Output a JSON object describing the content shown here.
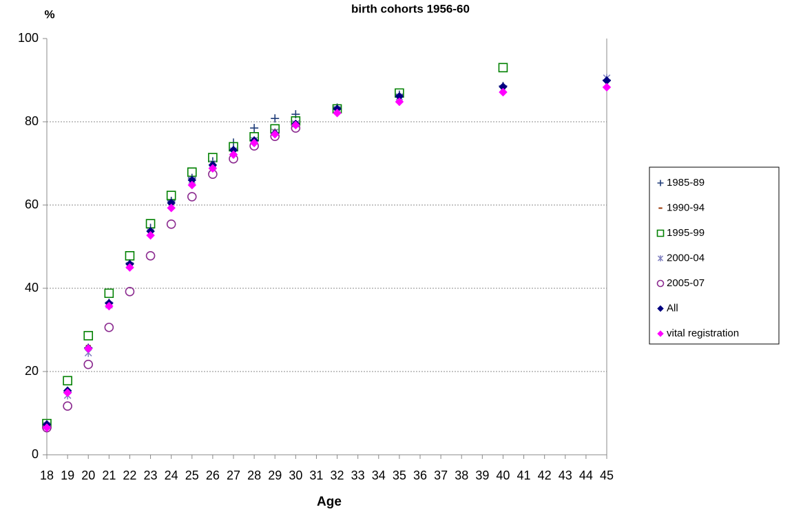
{
  "chart_data": {
    "type": "scatter",
    "title": "birth cohorts 1956-60",
    "y_label": "%",
    "x_label": "Age",
    "x": [
      18,
      19,
      20,
      21,
      22,
      23,
      24,
      25,
      26,
      27,
      28,
      29,
      30,
      32,
      35,
      40,
      45
    ],
    "xlim": [
      18,
      45
    ],
    "xticks": [
      18,
      19,
      20,
      21,
      22,
      23,
      24,
      25,
      26,
      27,
      28,
      29,
      30,
      31,
      32,
      33,
      34,
      35,
      36,
      37,
      38,
      39,
      40,
      41,
      42,
      43,
      44,
      45
    ],
    "ylim": [
      0,
      100
    ],
    "yticks": [
      0,
      20,
      40,
      60,
      80,
      100
    ],
    "grid": true,
    "legend": "right",
    "series": [
      {
        "name": "1985-89",
        "color": "#1f3c78",
        "marker": "plus",
        "values": [
          7,
          15,
          25.7,
          36.5,
          46,
          54.5,
          61,
          66.5,
          70.5,
          75,
          78.5,
          80.8,
          81.8,
          83.4,
          86.5,
          88.6,
          90
        ]
      },
      {
        "name": "1990-94",
        "color": "#993300",
        "marker": "dash",
        "values": [
          7,
          15,
          26.2,
          36.5,
          46,
          54,
          60.5,
          66,
          70,
          73.5,
          76,
          78,
          80,
          83,
          86,
          88,
          89.8
        ]
      },
      {
        "name": "1995-99",
        "color": "#008000",
        "marker": "square",
        "values": [
          7.5,
          17.8,
          28.6,
          38.8,
          47.8,
          55.5,
          62.3,
          67.9,
          71.4,
          74,
          76.4,
          78.3,
          80.2,
          83.1,
          86.9,
          93,
          null
        ]
      },
      {
        "name": "2000-04",
        "color": "#8080c0",
        "marker": "asterisk",
        "values": [
          7,
          14.3,
          24.5,
          36,
          45.5,
          53.5,
          60,
          66,
          69.8,
          73,
          75.5,
          77.5,
          79.5,
          83,
          86,
          88,
          90.5
        ]
      },
      {
        "name": "2005-07",
        "color": "#8b2a8f",
        "marker": "circle",
        "values": [
          6.5,
          11.7,
          21.7,
          30.6,
          39.2,
          47.8,
          55.4,
          62,
          67.4,
          71.1,
          74.2,
          76.5,
          78.5,
          null,
          null,
          null,
          null
        ]
      },
      {
        "name": "All",
        "color": "#000080",
        "marker": "diamond",
        "values": [
          7.3,
          15.4,
          25.6,
          36.4,
          45.8,
          53.7,
          60.5,
          66,
          69.6,
          73.2,
          75.5,
          77.2,
          79.5,
          83.1,
          86.1,
          88.4,
          89.9
        ]
      },
      {
        "name": "vital registration",
        "color": "#ff00ff",
        "marker": "diamond",
        "values": [
          6.5,
          14.9,
          25.5,
          35.7,
          45,
          52.7,
          59.3,
          64.8,
          68.8,
          72.1,
          74.9,
          77,
          79.2,
          82.1,
          84.8,
          87.1,
          88.3
        ]
      }
    ]
  }
}
